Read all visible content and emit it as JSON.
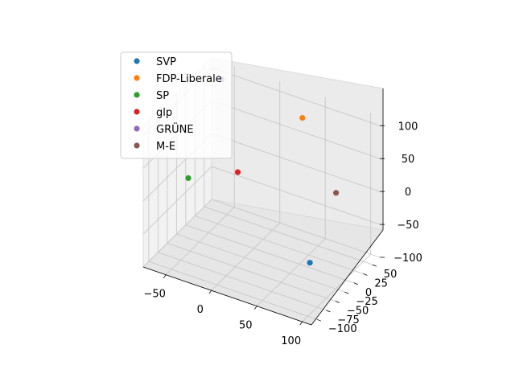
{
  "chart_data": {
    "type": "scatter",
    "projection": "3d",
    "title": "",
    "xlabel": "",
    "ylabel": "",
    "zlabel": "",
    "grid": true,
    "legend_position": "upper-left",
    "xlim": [
      -75,
      110
    ],
    "ylim": [
      -115,
      70
    ],
    "zlim": [
      -100,
      115
    ],
    "x_ticks": [
      -50,
      0,
      50,
      100
    ],
    "y_ticks": [
      50,
      25,
      0,
      -25,
      -50,
      -75,
      -100
    ],
    "z_ticks": [
      100,
      50,
      0,
      -50,
      -100
    ],
    "series": [
      {
        "name": "SVP",
        "color": "#1f77b4",
        "x": 90,
        "y": -70,
        "z": -40
      },
      {
        "name": "FDP-Liberale",
        "color": "#ff7f0e",
        "x": 35,
        "y": 45,
        "z": 90
      },
      {
        "name": "SP",
        "color": "#2ca02c",
        "x": -60,
        "y": -30,
        "z": -5
      },
      {
        "name": "glp",
        "color": "#d62728",
        "x": -30,
        "y": 30,
        "z": -15
      },
      {
        "name": "GRÜNE",
        "color": "#9467bd",
        "x": -60,
        "y": 60,
        "z": 95
      },
      {
        "name": "M-E",
        "color": "#8c564b",
        "x": 70,
        "y": 50,
        "z": -10
      }
    ]
  }
}
